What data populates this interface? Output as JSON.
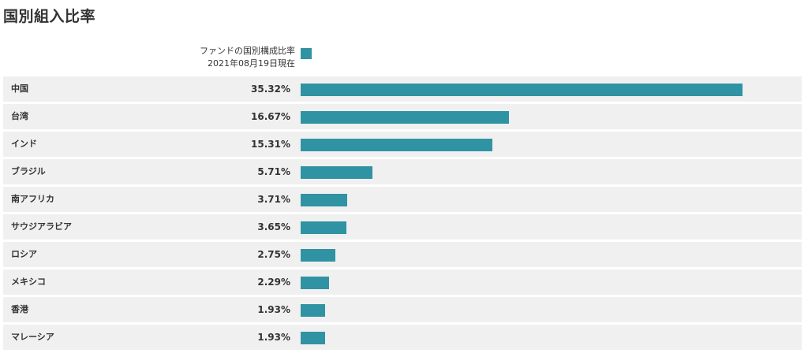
{
  "page": {
    "title": "国別組入比率"
  },
  "legend": {
    "series_name": "ファンドの国別構成比率",
    "date": "2021年08月19日現在"
  },
  "colors": {
    "bar": "#3093a3",
    "row_background": "#f0f0f0"
  },
  "chart_data": {
    "type": "bar",
    "orientation": "horizontal",
    "categories": [
      "中国",
      "台湾",
      "インド",
      "ブラジル",
      "南アフリカ",
      "サウジアラビア",
      "ロシア",
      "メキシコ",
      "香港",
      "マレーシア"
    ],
    "series": [
      {
        "name": "ファンドの国別構成比率",
        "values": [
          35.32,
          16.67,
          15.31,
          5.71,
          3.71,
          3.65,
          2.75,
          2.29,
          1.93,
          1.93
        ]
      }
    ],
    "value_labels": [
      "35.32%",
      "16.67%",
      "15.31%",
      "5.71%",
      "3.71%",
      "3.65%",
      "2.75%",
      "2.29%",
      "1.93%",
      "1.93%"
    ],
    "xlim": [
      0,
      35.32
    ],
    "grid": false,
    "legend_position": "top"
  }
}
